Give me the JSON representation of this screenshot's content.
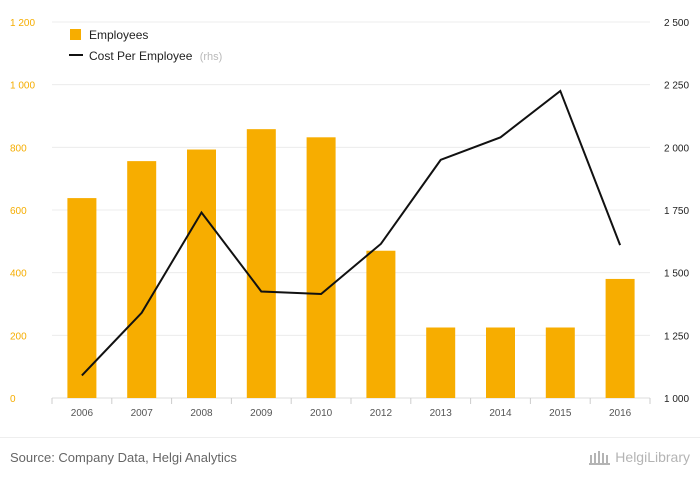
{
  "chart_data": {
    "type": "bar+line",
    "categories": [
      "2006",
      "2007",
      "2008",
      "2009",
      "2010",
      "2012",
      "2013",
      "2014",
      "2015",
      "2016"
    ],
    "series": [
      {
        "name": "Employees",
        "type": "bar",
        "axis": "left",
        "color": "#f7ad00",
        "values": [
          638,
          756,
          793,
          858,
          832,
          470,
          225,
          225,
          225,
          380
        ]
      },
      {
        "name": "Cost Per Employee",
        "name_suffix": "(rhs)",
        "type": "line",
        "axis": "right",
        "color": "#111111",
        "values": [
          1090,
          1340,
          1740,
          1425,
          1415,
          1615,
          1950,
          2040,
          2225,
          1610
        ]
      }
    ],
    "y_left": {
      "min": 0,
      "max": 1200,
      "ticks": [
        0,
        200,
        400,
        600,
        800,
        1000,
        1200
      ],
      "tick_labels": [
        "0",
        "200",
        "400",
        "600",
        "800",
        "1 000",
        "1 200"
      ]
    },
    "y_right": {
      "min": 1000,
      "max": 2500,
      "ticks": [
        1000,
        1250,
        1500,
        1750,
        2000,
        2250,
        2500
      ],
      "tick_labels": [
        "1 000",
        "1 250",
        "1 500",
        "1 750",
        "2 000",
        "2 250",
        "2 500"
      ]
    },
    "grid": true,
    "legend_position": "top-left"
  },
  "footer": {
    "source": "Source: Company Data, Helgi Analytics",
    "logo_text": "HelgiLibrary"
  }
}
